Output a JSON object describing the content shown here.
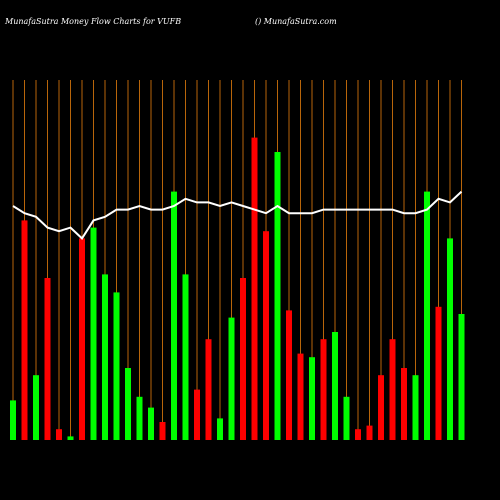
{
  "chart_data": {
    "type": "bar",
    "title": "MunafaSutra  Money Flow  Charts for VUFB",
    "subtitle": "() MunafaSutra.com",
    "categories": [
      null,
      null,
      null,
      null,
      null,
      null,
      null,
      null,
      null,
      null,
      null,
      null,
      null,
      null,
      null,
      null,
      null,
      null,
      null,
      null,
      null,
      null,
      null,
      null,
      null,
      null,
      null,
      null,
      null,
      null,
      null,
      null,
      null,
      null,
      null,
      null,
      null,
      null,
      null,
      null
    ],
    "ylim": [
      0,
      100
    ],
    "grid_color": "#b8650a",
    "series": [
      {
        "type": "bar",
        "values": [
          11,
          61,
          18,
          45,
          3,
          1,
          56,
          59,
          46,
          41,
          20,
          12,
          9,
          5,
          69,
          46,
          14,
          28,
          6,
          34,
          45,
          84,
          58,
          80,
          36,
          24,
          23,
          28,
          30,
          12,
          3,
          4,
          18,
          28,
          20,
          18,
          69,
          37,
          56,
          35
        ],
        "colors": [
          "#00ff00",
          "#ff0000",
          "#00ff00",
          "#ff0000",
          "#ff0000",
          "#00ff00",
          "#ff0000",
          "#00ff00",
          "#00ff00",
          "#00ff00",
          "#00ff00",
          "#00ff00",
          "#00ff00",
          "#ff0000",
          "#00ff00",
          "#00ff00",
          "#ff0000",
          "#ff0000",
          "#00ff00",
          "#00ff00",
          "#ff0000",
          "#ff0000",
          "#ff0000",
          "#00ff00",
          "#ff0000",
          "#ff0000",
          "#00ff00",
          "#ff0000",
          "#00ff00",
          "#00ff00",
          "#ff0000",
          "#ff0000",
          "#ff0000",
          "#ff0000",
          "#ff0000",
          "#00ff00",
          "#00ff00",
          "#ff0000",
          "#00ff00",
          "#00ff00"
        ]
      },
      {
        "type": "line",
        "color": "#ffffff",
        "values": [
          65,
          63,
          62,
          59,
          58,
          59,
          56,
          61,
          62,
          64,
          64,
          65,
          64,
          64,
          65,
          67,
          66,
          66,
          65,
          66,
          65,
          64,
          63,
          65,
          63,
          63,
          63,
          64,
          64,
          64,
          64,
          64,
          64,
          64,
          63,
          63,
          64,
          67,
          66,
          69
        ]
      }
    ]
  }
}
